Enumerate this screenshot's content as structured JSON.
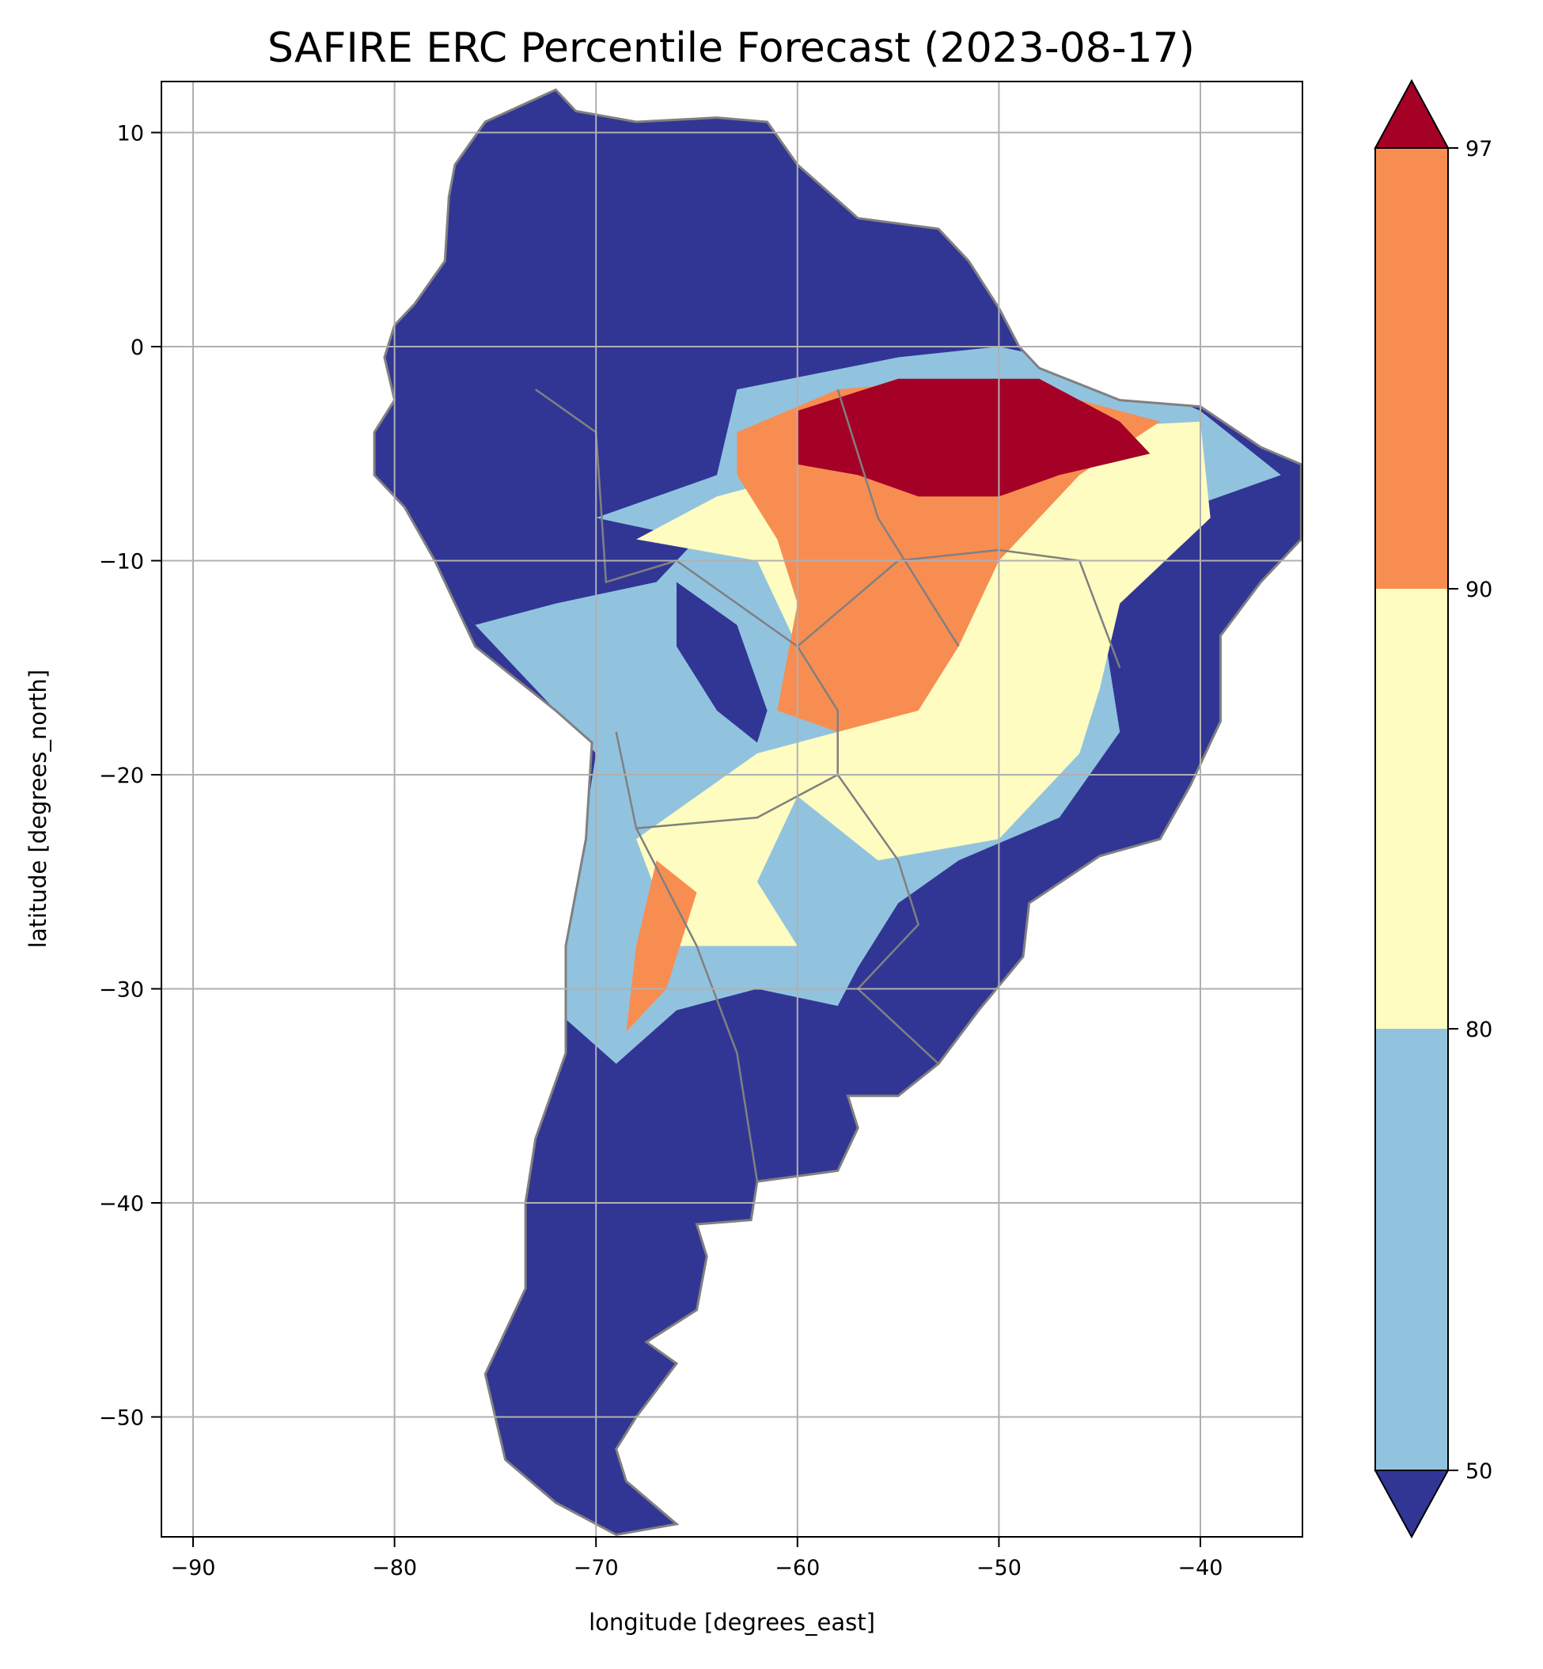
{
  "chart_data": {
    "type": "heatmap",
    "title": "SAFIRE ERC Percentile Forecast (2023-08-17)",
    "xlabel": "longitude [degrees_east]",
    "ylabel": "latitude [degrees_north]",
    "xlim": [
      -91.5,
      -35
    ],
    "ylim": [
      -55.8,
      12.3
    ],
    "xticks": [
      -90,
      -80,
      -70,
      -60,
      -50,
      -40
    ],
    "xtick_labels": [
      "−90",
      "−80",
      "−70",
      "−60",
      "−50",
      "−40"
    ],
    "yticks": [
      10,
      0,
      -10,
      -20,
      -30,
      -40,
      -50
    ],
    "ytick_labels": [
      "10",
      "0",
      "−10",
      "−20",
      "−30",
      "−40",
      "−50"
    ],
    "grid": true,
    "colorbar": {
      "levels": [
        50,
        80,
        90,
        97
      ],
      "level_labels": [
        "50",
        "80",
        "90",
        "97"
      ],
      "extend": "both",
      "colors": [
        "#313695",
        "#91c3df",
        "#fefcc0",
        "#f88d52",
        "#a50026"
      ]
    },
    "region_categories": {
      "below_50": "#313695",
      "50_80": "#91c3df",
      "80_90": "#fefcc0",
      "90_97": "#f88d52",
      "above_97": "#a50026"
    },
    "border_color": "#808080"
  }
}
